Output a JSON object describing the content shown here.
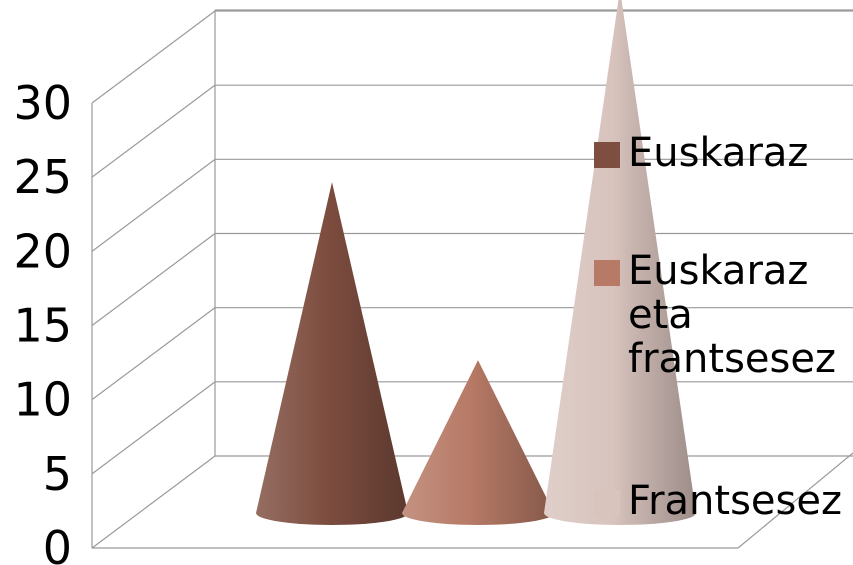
{
  "chart_data": {
    "type": "bar",
    "style": "3d-cone",
    "categories": [
      ""
    ],
    "series": [
      {
        "name": "Euskaraz",
        "values": [
          19
        ],
        "color": "#7e4e40"
      },
      {
        "name": "Euskaraz eta frantsesez",
        "values": [
          7
        ],
        "color": "#b77a66"
      },
      {
        "name": "Frantsesez",
        "values": [
          32
        ],
        "color": "#d8c3bd"
      }
    ],
    "ylim": [
      0,
      30
    ],
    "yticks": [
      "0",
      "5",
      "10",
      "15",
      "20",
      "25",
      "30"
    ],
    "grid": true,
    "legend_position": "right",
    "legend": [
      {
        "lines": [
          "Euskaraz"
        ],
        "color": "#7e4e40"
      },
      {
        "lines": [
          "Euskaraz",
          "eta",
          "frantsesez"
        ],
        "color": "#b77a66"
      },
      {
        "lines": [
          "Frantsesez"
        ],
        "color": "#d8c3bd"
      }
    ]
  }
}
